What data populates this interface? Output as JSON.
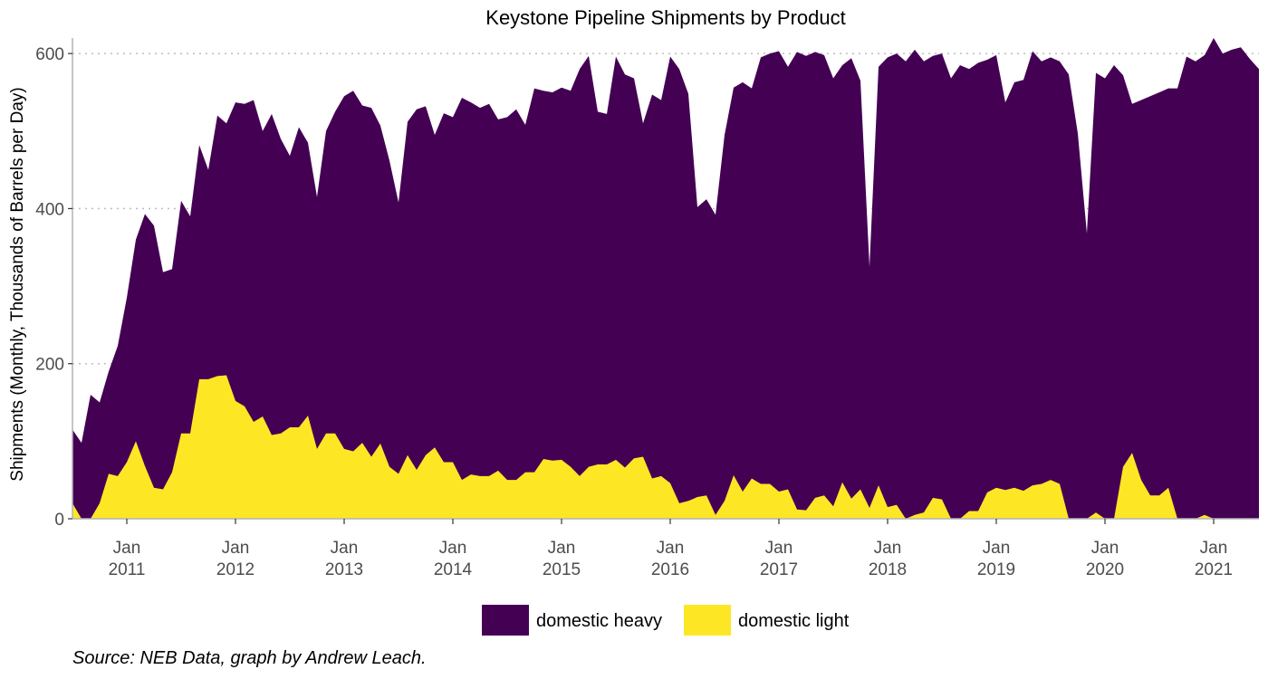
{
  "chart_data": {
    "type": "area",
    "stacked": true,
    "title": "Keystone Pipeline Shipments by Product",
    "ylabel": "Shipments (Monthly, Thousands of Barrels per Day)",
    "xlabel": "",
    "x_start": "2010-07",
    "x_end": "2021-06",
    "xlim": [
      "2010-07",
      "2021-06"
    ],
    "ylim": [
      0,
      620
    ],
    "y_ticks": [
      0,
      200,
      400,
      600
    ],
    "x_ticks": [
      {
        "date": "2011-01",
        "month": "Jan",
        "year": "2011"
      },
      {
        "date": "2012-01",
        "month": "Jan",
        "year": "2012"
      },
      {
        "date": "2013-01",
        "month": "Jan",
        "year": "2013"
      },
      {
        "date": "2014-01",
        "month": "Jan",
        "year": "2014"
      },
      {
        "date": "2015-01",
        "month": "Jan",
        "year": "2015"
      },
      {
        "date": "2016-01",
        "month": "Jan",
        "year": "2016"
      },
      {
        "date": "2017-01",
        "month": "Jan",
        "year": "2017"
      },
      {
        "date": "2018-01",
        "month": "Jan",
        "year": "2018"
      },
      {
        "date": "2019-01",
        "month": "Jan",
        "year": "2019"
      },
      {
        "date": "2020-01",
        "month": "Jan",
        "year": "2020"
      },
      {
        "date": "2021-01",
        "month": "Jan",
        "year": "2021"
      }
    ],
    "grid": "horizontal-major-dotted",
    "legend_position": "bottom",
    "series": [
      {
        "name": "domestic heavy",
        "color": "#440154",
        "total_values": [
          115,
          98,
          160,
          150,
          190,
          223,
          285,
          360,
          393,
          378,
          318,
          322,
          410,
          390,
          482,
          450,
          520,
          510,
          537,
          535,
          540,
          500,
          522,
          490,
          468,
          505,
          485,
          415,
          500,
          525,
          545,
          552,
          533,
          530,
          507,
          462,
          408,
          512,
          528,
          532,
          495,
          523,
          518,
          543,
          537,
          530,
          535,
          515,
          518,
          528,
          508,
          555,
          552,
          550,
          556,
          552,
          580,
          597,
          525,
          522,
          596,
          573,
          568,
          510,
          547,
          540,
          596,
          580,
          548,
          402,
          412,
          392,
          495,
          556,
          563,
          555,
          595,
          600,
          603,
          583,
          602,
          597,
          602,
          598,
          568,
          585,
          594,
          565,
          325,
          583,
          595,
          600,
          590,
          605,
          590,
          597,
          600,
          568,
          585,
          580,
          588,
          592,
          598,
          537,
          563,
          566,
          603,
          590,
          595,
          590,
          573,
          497,
          368,
          575,
          568,
          585,
          572,
          535,
          540,
          545,
          550,
          555,
          555,
          596,
          590,
          598,
          620,
          600,
          605,
          608,
          593,
          580
        ],
        "values": [
          95,
          98,
          160,
          130,
          132,
          168,
          212,
          260,
          325,
          338,
          280,
          262,
          300,
          280,
          302,
          270,
          336,
          325,
          385,
          390,
          415,
          368,
          414,
          380,
          350,
          387,
          352,
          325,
          390,
          415,
          455,
          465,
          435,
          450,
          410,
          395,
          350,
          430,
          465,
          450,
          403,
          450,
          445,
          493,
          480,
          475,
          480,
          453,
          468,
          478,
          448,
          495,
          475,
          475,
          480,
          485,
          525,
          530,
          455,
          452,
          520,
          507,
          490,
          430,
          495,
          485,
          550,
          560,
          525,
          374,
          382,
          387,
          472,
          500,
          528,
          503,
          550,
          555,
          568,
          545,
          590,
          586,
          575,
          568,
          552,
          538,
          568,
          527,
          311,
          540,
          580,
          582,
          590,
          600,
          582,
          573,
          575,
          568,
          585,
          570,
          578,
          558,
          558,
          500,
          523,
          530,
          560,
          545,
          545,
          545,
          573,
          497,
          368,
          567,
          568,
          585,
          505,
          450,
          490,
          515,
          520,
          515,
          555,
          596,
          590,
          593,
          620,
          600,
          605,
          608,
          593,
          580
        ]
      },
      {
        "name": "domestic light",
        "color": "#FDE725",
        "values": [
          20,
          0,
          0,
          20,
          58,
          55,
          73,
          100,
          68,
          40,
          38,
          60,
          110,
          110,
          180,
          180,
          184,
          185,
          152,
          145,
          125,
          132,
          108,
          110,
          118,
          118,
          133,
          90,
          110,
          110,
          90,
          87,
          98,
          80,
          97,
          67,
          58,
          82,
          63,
          82,
          92,
          73,
          73,
          50,
          57,
          55,
          55,
          62,
          50,
          50,
          60,
          60,
          77,
          75,
          76,
          67,
          55,
          67,
          70,
          70,
          76,
          66,
          78,
          80,
          52,
          55,
          46,
          20,
          23,
          28,
          30,
          5,
          23,
          56,
          35,
          52,
          45,
          45,
          35,
          38,
          12,
          11,
          27,
          30,
          16,
          47,
          26,
          38,
          14,
          43,
          15,
          18,
          0,
          5,
          8,
          27,
          25,
          0,
          0,
          10,
          10,
          34,
          40,
          37,
          40,
          36,
          43,
          45,
          50,
          45,
          0,
          0,
          0,
          8,
          0,
          0,
          67,
          85,
          50,
          30,
          30,
          40,
          0,
          0,
          0,
          5,
          0,
          0,
          0,
          0,
          0,
          0
        ]
      }
    ]
  },
  "source_text": "Source: NEB Data, graph by Andrew Leach."
}
